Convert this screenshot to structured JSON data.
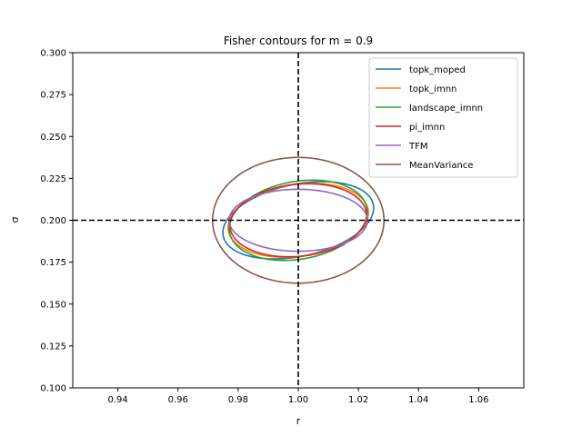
{
  "chart_data": {
    "type": "line",
    "title": "Fisher contours for m = 0.9",
    "xlabel": "r",
    "ylabel": "σ",
    "xlim": [
      0.925,
      1.075
    ],
    "ylim": [
      0.1,
      0.3
    ],
    "xticks": [
      0.94,
      0.96,
      0.98,
      1.0,
      1.02,
      1.04,
      1.06
    ],
    "xtick_labels": [
      "0.94",
      "0.96",
      "0.98",
      "1.00",
      "1.02",
      "1.04",
      "1.06"
    ],
    "yticks": [
      0.1,
      0.125,
      0.15,
      0.175,
      0.2,
      0.225,
      0.25,
      0.275,
      0.3
    ],
    "ytick_labels": [
      "0.100",
      "0.125",
      "0.150",
      "0.175",
      "0.200",
      "0.225",
      "0.250",
      "0.275",
      "0.300"
    ],
    "reference_lines": {
      "x": 1.0,
      "y": 0.2,
      "style": "dashed",
      "color": "#000000"
    },
    "legend_position": "top-right",
    "grid": false,
    "series": [
      {
        "name": "topk_moped",
        "color": "#1f77b4",
        "center": [
          1.0,
          0.2
        ],
        "half_width_r": 0.0255,
        "half_height_sigma": 0.0215,
        "tilt_deg": -12
      },
      {
        "name": "topk_imnn",
        "color": "#ff7f0e",
        "center": [
          1.0,
          0.2
        ],
        "half_width_r": 0.0235,
        "half_height_sigma": 0.0215,
        "tilt_deg": -8
      },
      {
        "name": "landscape_imnn",
        "color": "#2ca02c",
        "center": [
          1.0,
          0.2
        ],
        "half_width_r": 0.0232,
        "half_height_sigma": 0.0232,
        "tilt_deg": -10
      },
      {
        "name": "pi_imnn",
        "color": "#d62728",
        "center": [
          1.0,
          0.2
        ],
        "half_width_r": 0.0228,
        "half_height_sigma": 0.0215,
        "tilt_deg": -6
      },
      {
        "name": "TFM",
        "color": "#9467bd",
        "center": [
          1.0,
          0.2
        ],
        "half_width_r": 0.023,
        "half_height_sigma": 0.0185,
        "tilt_deg": 0
      },
      {
        "name": "MeanVariance",
        "color": "#8c564b",
        "center": [
          1.0,
          0.2
        ],
        "half_width_r": 0.0285,
        "half_height_sigma": 0.0375,
        "tilt_deg": 0
      }
    ]
  }
}
